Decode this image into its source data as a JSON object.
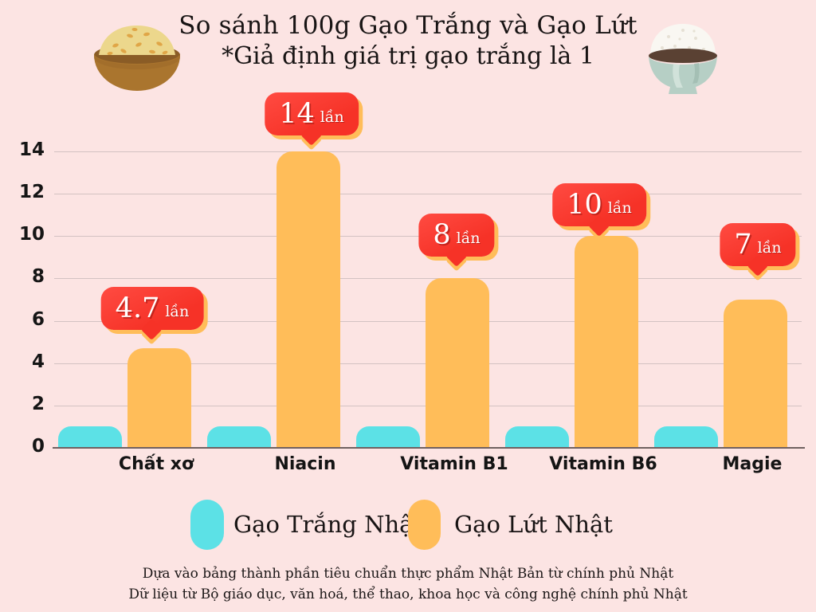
{
  "header": {
    "title_line1": "So sánh 100g Gạo Trắng và Gạo Lứt",
    "title_line2": "*Giả định giá trị gạo trắng là 1",
    "left_icon": "brown-rice-bowl-icon",
    "right_icon": "white-rice-bowl-icon"
  },
  "chart_data": {
    "type": "bar",
    "categories": [
      "Chất xơ",
      "Niacin",
      "Vitamin B1",
      "Vitamin B6",
      "Magie"
    ],
    "series": [
      {
        "name": "Gạo Trắng Nhật",
        "color": "#5CE1E6",
        "values": [
          1,
          1,
          1,
          1,
          1
        ]
      },
      {
        "name": "Gạo Lứt Nhật",
        "color": "#FFBD59",
        "values": [
          4.7,
          14,
          8,
          10,
          7
        ]
      }
    ],
    "annotations": [
      {
        "value": "4.7",
        "suffix": "lần"
      },
      {
        "value": "14",
        "suffix": "lần"
      },
      {
        "value": "8",
        "suffix": "lần"
      },
      {
        "value": "10",
        "suffix": "lần"
      },
      {
        "value": "7",
        "suffix": "lần"
      }
    ],
    "y_ticks": [
      0,
      2,
      4,
      6,
      8,
      10,
      12,
      14
    ],
    "ylim": [
      0,
      14
    ],
    "grid": true,
    "xlabel": "",
    "ylabel": "",
    "legend_position": "bottom"
  },
  "legend": {
    "items": [
      {
        "label": "Gạo Trắng Nhật",
        "color": "#5CE1E6"
      },
      {
        "label": "Gạo Lứt Nhật",
        "color": "#FFBD59"
      }
    ]
  },
  "footer": {
    "line1": "Dựa vào bảng thành phần tiêu chuẩn thực phẩm Nhật Bản từ chính phủ Nhật",
    "line2": "Dữ liệu từ Bộ giáo dục, văn hoá, thể thao, khoa học và công nghệ chính phủ Nhật"
  },
  "colors": {
    "background": "#FCE4E3",
    "bar_cyan": "#5CE1E6",
    "bar_orange": "#FFBD59",
    "badge_red": "#FF3131",
    "badge_shadow": "#FFBD59",
    "gridline": "#D3C2C2",
    "axis_line": "#6F6060",
    "text": "#181414"
  }
}
